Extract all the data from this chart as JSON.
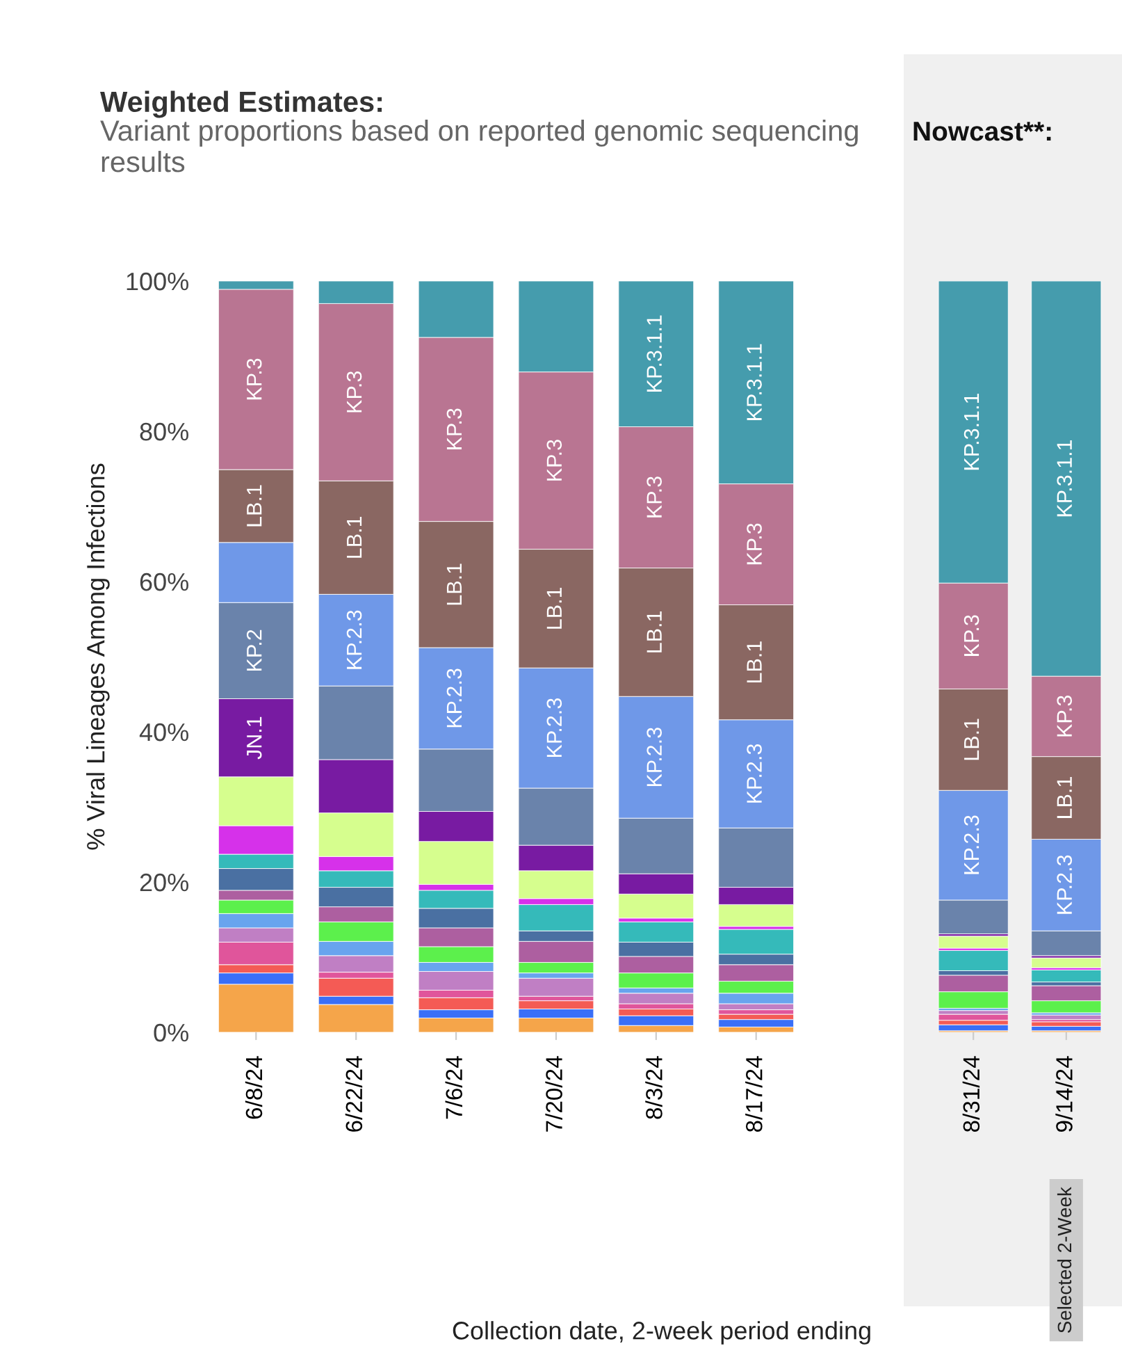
{
  "chart_data": [
    {
      "type": "bar",
      "stacked": true,
      "title": "Weighted Estimates:",
      "subtitle": "Variant proportions based on reported genomic sequencing results",
      "ylabel": "% Viral Lineages Among Infections",
      "xlabel": "Collection date, 2-week period ending",
      "categories": [
        "6/8/24",
        "6/22/24",
        "7/6/24",
        "7/20/24",
        "8/3/24",
        "8/17/24"
      ],
      "ylim": [
        0,
        100
      ],
      "yticks": [
        {
          "value": 0,
          "label": "0%"
        },
        {
          "value": 20,
          "label": "20%"
        },
        {
          "value": 40,
          "label": "40%"
        },
        {
          "value": 60,
          "label": "60%"
        },
        {
          "value": 80,
          "label": "80%"
        },
        {
          "value": 100,
          "label": "100%"
        }
      ],
      "series": [
        {
          "color": "#f5a54a",
          "values": [
            6.4,
            3.7,
            1.9,
            1.9,
            0.9,
            0.7
          ]
        },
        {
          "color": "#3a6ff7",
          "values": [
            1.5,
            1.1,
            1.1,
            1.2,
            1.3,
            1.0
          ]
        },
        {
          "color": "#f45b55",
          "values": [
            1.1,
            2.4,
            1.6,
            1.1,
            0.9,
            0.7
          ]
        },
        {
          "color": "#e0559b",
          "values": [
            3.0,
            0.8,
            1.0,
            0.6,
            0.7,
            0.6
          ]
        },
        {
          "color": "#c07fc4",
          "values": [
            1.9,
            2.2,
            2.5,
            2.4,
            1.4,
            0.8
          ]
        },
        {
          "color": "#68a4ee",
          "values": [
            1.9,
            1.9,
            1.2,
            0.7,
            0.7,
            1.4
          ]
        },
        {
          "color": "#5cf04c",
          "values": [
            1.8,
            2.6,
            2.1,
            1.4,
            2.0,
            1.6
          ]
        },
        {
          "color": "#ad5fa0",
          "values": [
            1.3,
            2.0,
            2.5,
            2.8,
            2.2,
            2.2
          ]
        },
        {
          "color": "#4a70a2",
          "values": [
            2.9,
            2.6,
            2.6,
            1.4,
            1.9,
            1.4
          ]
        },
        {
          "color": "#35baba",
          "values": [
            1.9,
            2.2,
            2.4,
            3.5,
            2.7,
            3.3
          ]
        },
        {
          "color": "#d631ea",
          "values": [
            3.8,
            1.9,
            0.8,
            0.8,
            0.5,
            0.4
          ]
        },
        {
          "color": "#d6fe8e",
          "values": [
            6.5,
            5.8,
            5.7,
            3.7,
            3.2,
            2.9
          ]
        },
        {
          "color": "#781ba2",
          "values": [
            10.4,
            7.1,
            4.0,
            3.4,
            2.7,
            2.3
          ],
          "value_labels": [
            "JN.1",
            null,
            null,
            null,
            null,
            null
          ]
        },
        {
          "color": "#6a83ab",
          "values": [
            12.8,
            9.8,
            8.3,
            7.6,
            7.4,
            7.9
          ],
          "value_labels": [
            "KP.2",
            null,
            null,
            null,
            null,
            null
          ]
        },
        {
          "color": "#6f98e8",
          "values": [
            8.0,
            12.2,
            13.5,
            16.0,
            16.2,
            14.4
          ],
          "value_labels": [
            null,
            "KP.2.3",
            "KP.2.3",
            "KP.2.3",
            "KP.2.3",
            "KP.2.3"
          ]
        },
        {
          "color": "#8a6762",
          "values": [
            9.7,
            15.1,
            16.8,
            15.8,
            17.1,
            15.3
          ],
          "value_labels": [
            "LB.1",
            "LB.1",
            "LB.1",
            "LB.1",
            "LB.1",
            "LB.1"
          ]
        },
        {
          "color": "#b97592",
          "values": [
            24.0,
            23.6,
            24.5,
            23.6,
            18.8,
            16.1
          ],
          "value_labels": [
            "KP.3",
            "KP.3",
            "KP.3",
            "KP.3",
            "KP.3",
            "KP.3"
          ]
        },
        {
          "color": "#459cad",
          "values": [
            1.1,
            3.0,
            7.5,
            12.1,
            19.4,
            27.0
          ],
          "value_labels": [
            null,
            null,
            null,
            null,
            "KP.3.1.1",
            "KP.3.1.1"
          ]
        }
      ]
    },
    {
      "type": "bar",
      "stacked": true,
      "title": "Nowcast**:",
      "categories": [
        "8/31/24",
        "9/14/24"
      ],
      "ylim": [
        0,
        100
      ],
      "annotations": [
        "Selected 2-Week"
      ],
      "series": [
        {
          "color": "#f5a54a",
          "values": [
            0.2,
            0.2
          ]
        },
        {
          "color": "#3a6ff7",
          "values": [
            0.8,
            0.6
          ]
        },
        {
          "color": "#f45b55",
          "values": [
            0.6,
            0.6
          ]
        },
        {
          "color": "#e0559b",
          "values": [
            0.8,
            0.3
          ]
        },
        {
          "color": "#c07fc4",
          "values": [
            0.5,
            0.6
          ]
        },
        {
          "color": "#68a4ee",
          "values": [
            0.3,
            0.3
          ]
        },
        {
          "color": "#5cf04c",
          "values": [
            2.2,
            1.6
          ]
        },
        {
          "color": "#ad5fa0",
          "values": [
            2.2,
            2.0
          ]
        },
        {
          "color": "#4a70a2",
          "values": [
            0.6,
            0.5
          ]
        },
        {
          "color": "#35baba",
          "values": [
            2.7,
            1.6
          ]
        },
        {
          "color": "#d631ea",
          "values": [
            0.3,
            0.3
          ]
        },
        {
          "color": "#d6fe8e",
          "values": [
            1.6,
            1.3
          ]
        },
        {
          "color": "#781ba2",
          "values": [
            0.3,
            0.3
          ]
        },
        {
          "color": "#6a83ab",
          "values": [
            4.5,
            3.3
          ]
        },
        {
          "color": "#6f98e8",
          "values": [
            14.6,
            12.2
          ],
          "value_labels": [
            "KP.2.3",
            "KP.2.3"
          ]
        },
        {
          "color": "#8a6762",
          "values": [
            13.5,
            11.0
          ],
          "value_labels": [
            "LB.1",
            "LB.1"
          ]
        },
        {
          "color": "#b97592",
          "values": [
            14.1,
            10.7
          ],
          "value_labels": [
            "KP.3",
            "KP.3"
          ]
        },
        {
          "color": "#459cad",
          "values": [
            40.2,
            52.6
          ],
          "value_labels": [
            "KP.3.1.1",
            "KP.3.1.1"
          ]
        }
      ]
    }
  ]
}
